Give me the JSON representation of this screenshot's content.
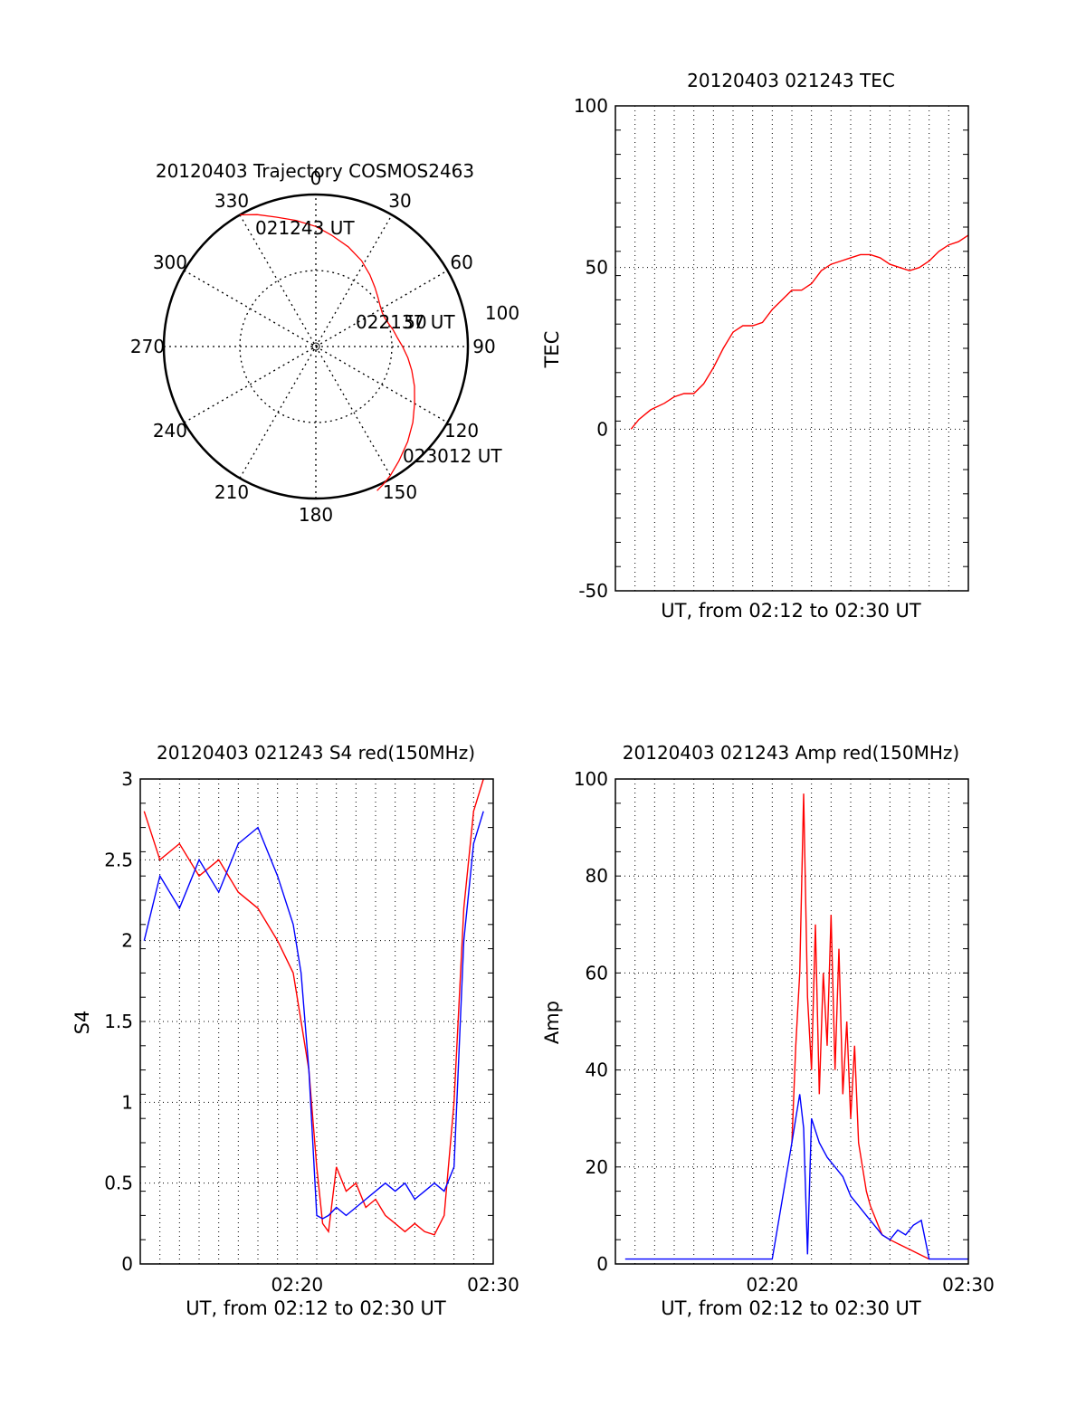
{
  "chart_data": [
    {
      "id": "trajectory",
      "type": "scatter",
      "title": "20120403 Trajectory COSMOS2463",
      "angle_labels": [
        "0",
        "30",
        "60",
        "90",
        "120",
        "150",
        "180",
        "210",
        "240",
        "270",
        "300",
        "330"
      ],
      "ring_labels": [
        "50",
        "100"
      ],
      "series": [
        {
          "color": "#ff0000",
          "azimuth": [
            330,
            336,
            343,
            351,
            0,
            8,
            18,
            28,
            37,
            45,
            52,
            58,
            63,
            67,
            72,
            78,
            84,
            90,
            97,
            104,
            112,
            120,
            128,
            136,
            144,
            150,
            154,
            157
          ],
          "zenith": [
            100,
            95,
            89,
            84,
            79,
            74,
            69,
            64,
            59,
            55,
            52,
            50,
            49,
            49,
            50,
            52,
            54,
            57,
            61,
            65,
            70,
            75,
            81,
            87,
            93,
            98,
            101,
            103
          ]
        }
      ],
      "annotations": [
        "021243 UT",
        "022137 UT",
        "023012 UT"
      ]
    },
    {
      "id": "tec",
      "type": "line",
      "title": "20120403 021243 TEC",
      "xlabel": "UT, from 02:12 to 02:30 UT",
      "ylabel": "TEC",
      "xlim": [
        0,
        18
      ],
      "ylim": [
        -50,
        100
      ],
      "yticks": [
        "-50",
        "0",
        "50",
        "100"
      ],
      "series": [
        {
          "color": "#ff0000",
          "x": [
            0.8,
            1.2,
            1.8,
            2.5,
            3.0,
            3.5,
            4.0,
            4.5,
            5.0,
            5.5,
            6.0,
            6.5,
            7.0,
            7.5,
            8.0,
            8.5,
            9.0,
            9.5,
            10.0,
            10.5,
            11.0,
            11.5,
            12.0,
            12.5,
            13.0,
            13.5,
            14.0,
            14.5,
            15.0,
            15.5,
            16.0,
            16.5,
            17.0,
            17.5,
            18.0
          ],
          "y": [
            0,
            3,
            6,
            8,
            10,
            11,
            11,
            14,
            19,
            25,
            30,
            32,
            32,
            33,
            37,
            40,
            43,
            43,
            45,
            49,
            51,
            52,
            53,
            54,
            54,
            53,
            51,
            50,
            49,
            50,
            52,
            55,
            57,
            58,
            60
          ]
        }
      ]
    },
    {
      "id": "s4",
      "type": "line",
      "title": "20120403 021243 S4 red(150MHz)",
      "xlabel": "UT, from 02:12 to 02:30 UT",
      "ylabel": "S4",
      "xlim": [
        0,
        18
      ],
      "ylim": [
        0,
        3
      ],
      "xticks": [
        "02:20",
        "02:30"
      ],
      "yticks": [
        "0",
        "0.5",
        "1",
        "1.5",
        "2",
        "2.5",
        "3"
      ],
      "series": [
        {
          "color": "#ff0000",
          "x": [
            0.2,
            1.0,
            2.0,
            3.0,
            4.0,
            5.0,
            6.0,
            7.0,
            7.8,
            8.2,
            8.6,
            9.0,
            9.3,
            9.6,
            10.0,
            10.5,
            11.0,
            11.5,
            12.0,
            12.5,
            13.0,
            13.5,
            14.0,
            14.5,
            15.0,
            15.5,
            16.0,
            16.5,
            17.0,
            17.5
          ],
          "y": [
            2.8,
            2.5,
            2.6,
            2.4,
            2.5,
            2.3,
            2.2,
            2.0,
            1.8,
            1.5,
            1.2,
            0.6,
            0.25,
            0.2,
            0.6,
            0.45,
            0.5,
            0.35,
            0.4,
            0.3,
            0.25,
            0.2,
            0.25,
            0.2,
            0.18,
            0.3,
            1.0,
            2.2,
            2.8,
            3.0
          ]
        },
        {
          "color": "#0000ff",
          "x": [
            0.2,
            1.0,
            2.0,
            3.0,
            4.0,
            5.0,
            6.0,
            7.0,
            7.8,
            8.2,
            8.6,
            9.0,
            9.3,
            9.6,
            10.0,
            10.5,
            11.0,
            11.5,
            12.0,
            12.5,
            13.0,
            13.5,
            14.0,
            14.5,
            15.0,
            15.5,
            16.0,
            16.5,
            17.0,
            17.5
          ],
          "y": [
            2.0,
            2.4,
            2.2,
            2.5,
            2.3,
            2.6,
            2.7,
            2.4,
            2.1,
            1.8,
            1.2,
            0.3,
            0.28,
            0.3,
            0.35,
            0.3,
            0.35,
            0.4,
            0.45,
            0.5,
            0.45,
            0.5,
            0.4,
            0.45,
            0.5,
            0.45,
            0.6,
            2.0,
            2.6,
            2.8
          ]
        }
      ]
    },
    {
      "id": "amp",
      "type": "line",
      "title": "20120403 021243 Amp red(150MHz)",
      "xlabel": "UT, from 02:12 to 02:30 UT",
      "ylabel": "Amp",
      "xlim": [
        0,
        18
      ],
      "ylim": [
        0,
        100
      ],
      "xticks": [
        "02:20",
        "02:30"
      ],
      "yticks": [
        "0",
        "20",
        "40",
        "60",
        "80",
        "100"
      ],
      "series": [
        {
          "color": "#ff0000",
          "x": [
            9.0,
            9.2,
            9.4,
            9.6,
            9.8,
            10.0,
            10.2,
            10.4,
            10.6,
            10.8,
            11.0,
            11.2,
            11.4,
            11.6,
            11.8,
            12.0,
            12.2,
            12.4,
            12.6,
            12.8,
            13.0,
            13.2,
            13.4,
            13.6,
            14.0,
            14.5,
            15.0,
            15.5,
            16.0
          ],
          "y": [
            25,
            45,
            60,
            97,
            55,
            40,
            70,
            35,
            60,
            45,
            72,
            40,
            65,
            35,
            50,
            30,
            45,
            25,
            20,
            15,
            12,
            10,
            8,
            6,
            5,
            4,
            3,
            2,
            1
          ]
        },
        {
          "color": "#0000ff",
          "x": [
            0.5,
            2.0,
            4.0,
            6.0,
            8.0,
            9.0,
            9.2,
            9.4,
            9.6,
            9.8,
            10.0,
            10.4,
            10.8,
            11.2,
            11.6,
            12.0,
            12.4,
            12.8,
            13.2,
            13.6,
            14.0,
            14.4,
            14.8,
            15.2,
            15.6,
            16.0,
            17.0,
            18.0
          ],
          "y": [
            1,
            1,
            1,
            1,
            1,
            25,
            30,
            35,
            28,
            2,
            30,
            25,
            22,
            20,
            18,
            14,
            12,
            10,
            8,
            6,
            5,
            7,
            6,
            8,
            9,
            1,
            1,
            1
          ]
        }
      ]
    }
  ]
}
